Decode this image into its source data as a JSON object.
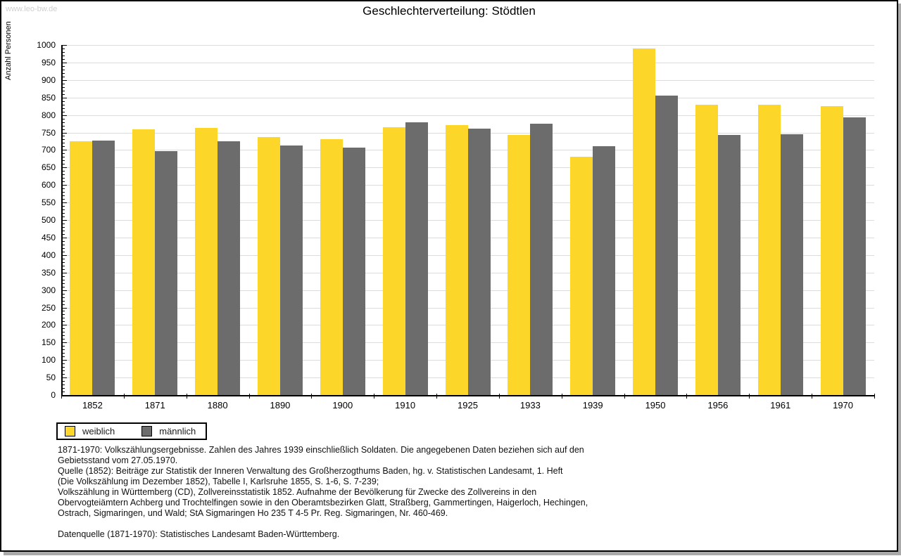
{
  "watermark": "www.leo-bw.de",
  "title": "Geschlechterverteilung: Stödtlen",
  "chart_data": {
    "type": "bar",
    "title": "Geschlechterverteilung: Stödtlen",
    "xlabel": "",
    "ylabel": "Anzahl Personen",
    "categories": [
      "1852",
      "1871",
      "1880",
      "1890",
      "1900",
      "1910",
      "1925",
      "1933",
      "1939",
      "1950",
      "1956",
      "1961",
      "1970"
    ],
    "series": [
      {
        "name": "weiblich",
        "color": "#FDD62A",
        "values": [
          724,
          760,
          764,
          737,
          730,
          765,
          772,
          742,
          680,
          990,
          830,
          829,
          826
        ]
      },
      {
        "name": "männlich",
        "color": "#6C6C6C",
        "values": [
          726,
          697,
          724,
          712,
          706,
          780,
          762,
          775,
          710,
          855,
          742,
          744,
          794
        ]
      }
    ],
    "ylim": [
      0,
      1000
    ],
    "ytick_step": 50,
    "y_minor_step": 10,
    "grid": true,
    "legend_position": "bottom-left"
  },
  "colors": {
    "female_bar": "#FDD62A",
    "male_bar": "#6C6C6C",
    "gridline": "#dcdcdc",
    "axis": "#000000",
    "watermark": "#cfcfcf",
    "frame_shadow": "#aaaaaa"
  },
  "footnotes": {
    "lines": [
      "1871-1970: Volkszählungsergebnisse. Zahlen des Jahres 1939 einschließlich Soldaten. Die angegebenen Daten beziehen sich auf den",
      "Gebietsstand vom 27.05.1970.",
      "Quelle (1852): Beiträge zur Statistik der Inneren Verwaltung des Großherzogthums Baden, hg. v. Statistischen Landesamt, 1. Heft",
      "(Die Volkszählung im Dezember 1852), Tabelle I, Karlsruhe 1855, S. 1-6, S. 7-239;",
      "Volkszählung in Württemberg (CD), Zollvereinsstatistik 1852. Aufnahme der Bevölkerung für Zwecke des Zollvereins in den",
      "Obervogteiämtern Achberg und Trochtelfingen sowie in den Oberamtsbezirken Glatt, Straßberg, Gammertingen, Haigerloch, Hechingen,",
      "Ostrach, Sigmaringen, und Wald; StA Sigmaringen Ho 235 T 4-5 Pr. Reg. Sigmaringen, Nr. 460-469.",
      "",
      "Datenquelle (1871-1970): Statistisches Landesamt Baden-Württemberg."
    ]
  }
}
